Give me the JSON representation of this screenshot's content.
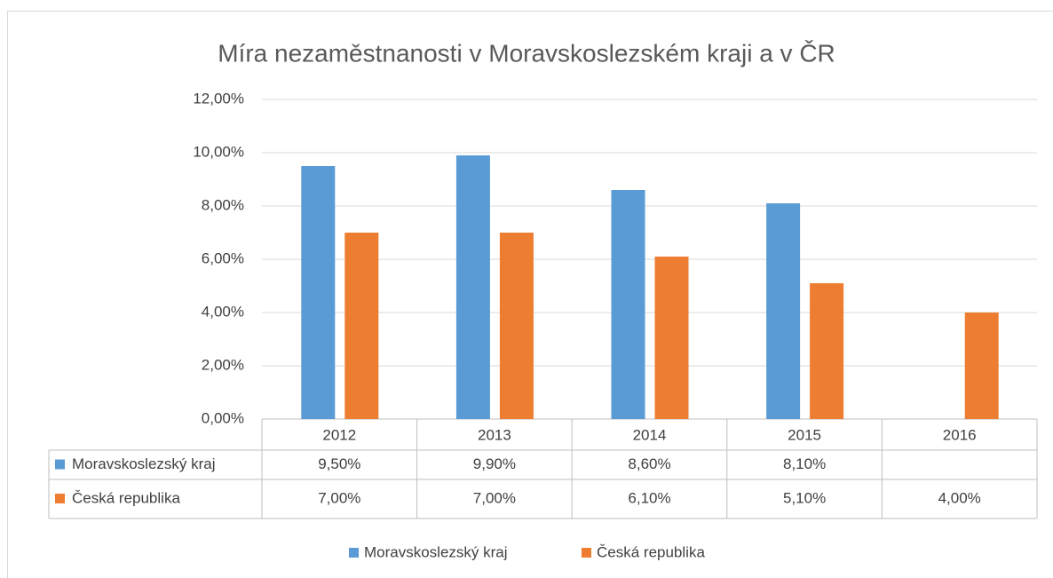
{
  "chart_data": {
    "type": "bar",
    "title": "Míra nezaměstnanosti v Moravskoslezském kraji a v ČR",
    "categories": [
      "2012",
      "2013",
      "2014",
      "2015",
      "2016"
    ],
    "series": [
      {
        "name": "Moravskoslezský kraj",
        "color": "#5b9bd5",
        "values": [
          9.5,
          9.9,
          8.6,
          8.1,
          null
        ],
        "value_labels": [
          "9,50%",
          "9,90%",
          "8,60%",
          "8,10%",
          null
        ]
      },
      {
        "name": "Česká republika",
        "color": "#ed7d31",
        "values": [
          7.0,
          7.0,
          6.1,
          5.1,
          4.0
        ],
        "value_labels": [
          "7,00%",
          "7,00%",
          "6,10%",
          "5,10%",
          "4,00%"
        ]
      }
    ],
    "ylim": [
      0,
      12
    ],
    "yticks": [
      {
        "value": 0,
        "label": "0,00%"
      },
      {
        "value": 2,
        "label": "2,00%"
      },
      {
        "value": 4,
        "label": "4,00%"
      },
      {
        "value": 6,
        "label": "6,00%"
      },
      {
        "value": 8,
        "label": "8,00%"
      },
      {
        "value": 10,
        "label": "10,00%"
      },
      {
        "value": 12,
        "label": "12,00%"
      }
    ],
    "grid": true,
    "legend": "bottom"
  }
}
